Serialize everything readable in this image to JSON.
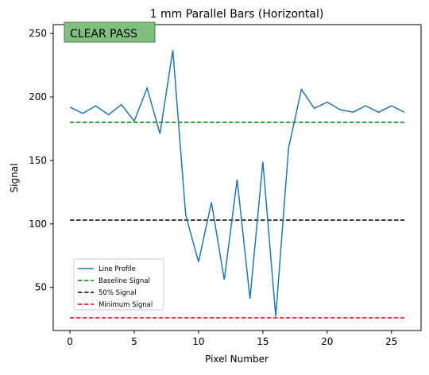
{
  "chart_data": {
    "type": "line",
    "title": "1 mm Parallel Bars (Horizontal)",
    "xlabel": "Pixel Number",
    "ylabel": "Signal",
    "xlim": [
      -1.3,
      27.3
    ],
    "ylim": [
      16,
      257
    ],
    "xticks": [
      0,
      5,
      10,
      15,
      20,
      25
    ],
    "yticks": [
      50,
      100,
      150,
      200,
      250
    ],
    "grid": false,
    "legend_position": "lower-left",
    "annotation": {
      "text": "CLEAR PASS",
      "color": "#7fbf7f"
    },
    "series": [
      {
        "name": "Line Profile",
        "color": "#1f77b4",
        "style": "solid",
        "x": [
          0,
          1,
          2,
          3,
          4,
          5,
          6,
          7,
          8,
          9,
          10,
          11,
          12,
          13,
          14,
          15,
          16,
          17,
          18,
          19,
          20,
          21,
          22,
          23,
          24,
          25,
          26
        ],
        "y": [
          192,
          187,
          193,
          186,
          194,
          181,
          207,
          171,
          237,
          107,
          70,
          117,
          56,
          135,
          41,
          149,
          27,
          160,
          206,
          191,
          196,
          190,
          188,
          193,
          188,
          193,
          188
        ]
      },
      {
        "name": "Baseline Signal",
        "color": "#008000",
        "style": "dashed",
        "x": [
          0,
          26
        ],
        "y": [
          180,
          180
        ]
      },
      {
        "name": "50% Signal",
        "color": "#000000",
        "style": "dashed",
        "x": [
          0,
          26
        ],
        "y": [
          103,
          103
        ]
      },
      {
        "name": "Minimum Signal",
        "color": "#e00000",
        "style": "dashed",
        "x": [
          0,
          26
        ],
        "y": [
          26,
          26
        ]
      }
    ]
  }
}
